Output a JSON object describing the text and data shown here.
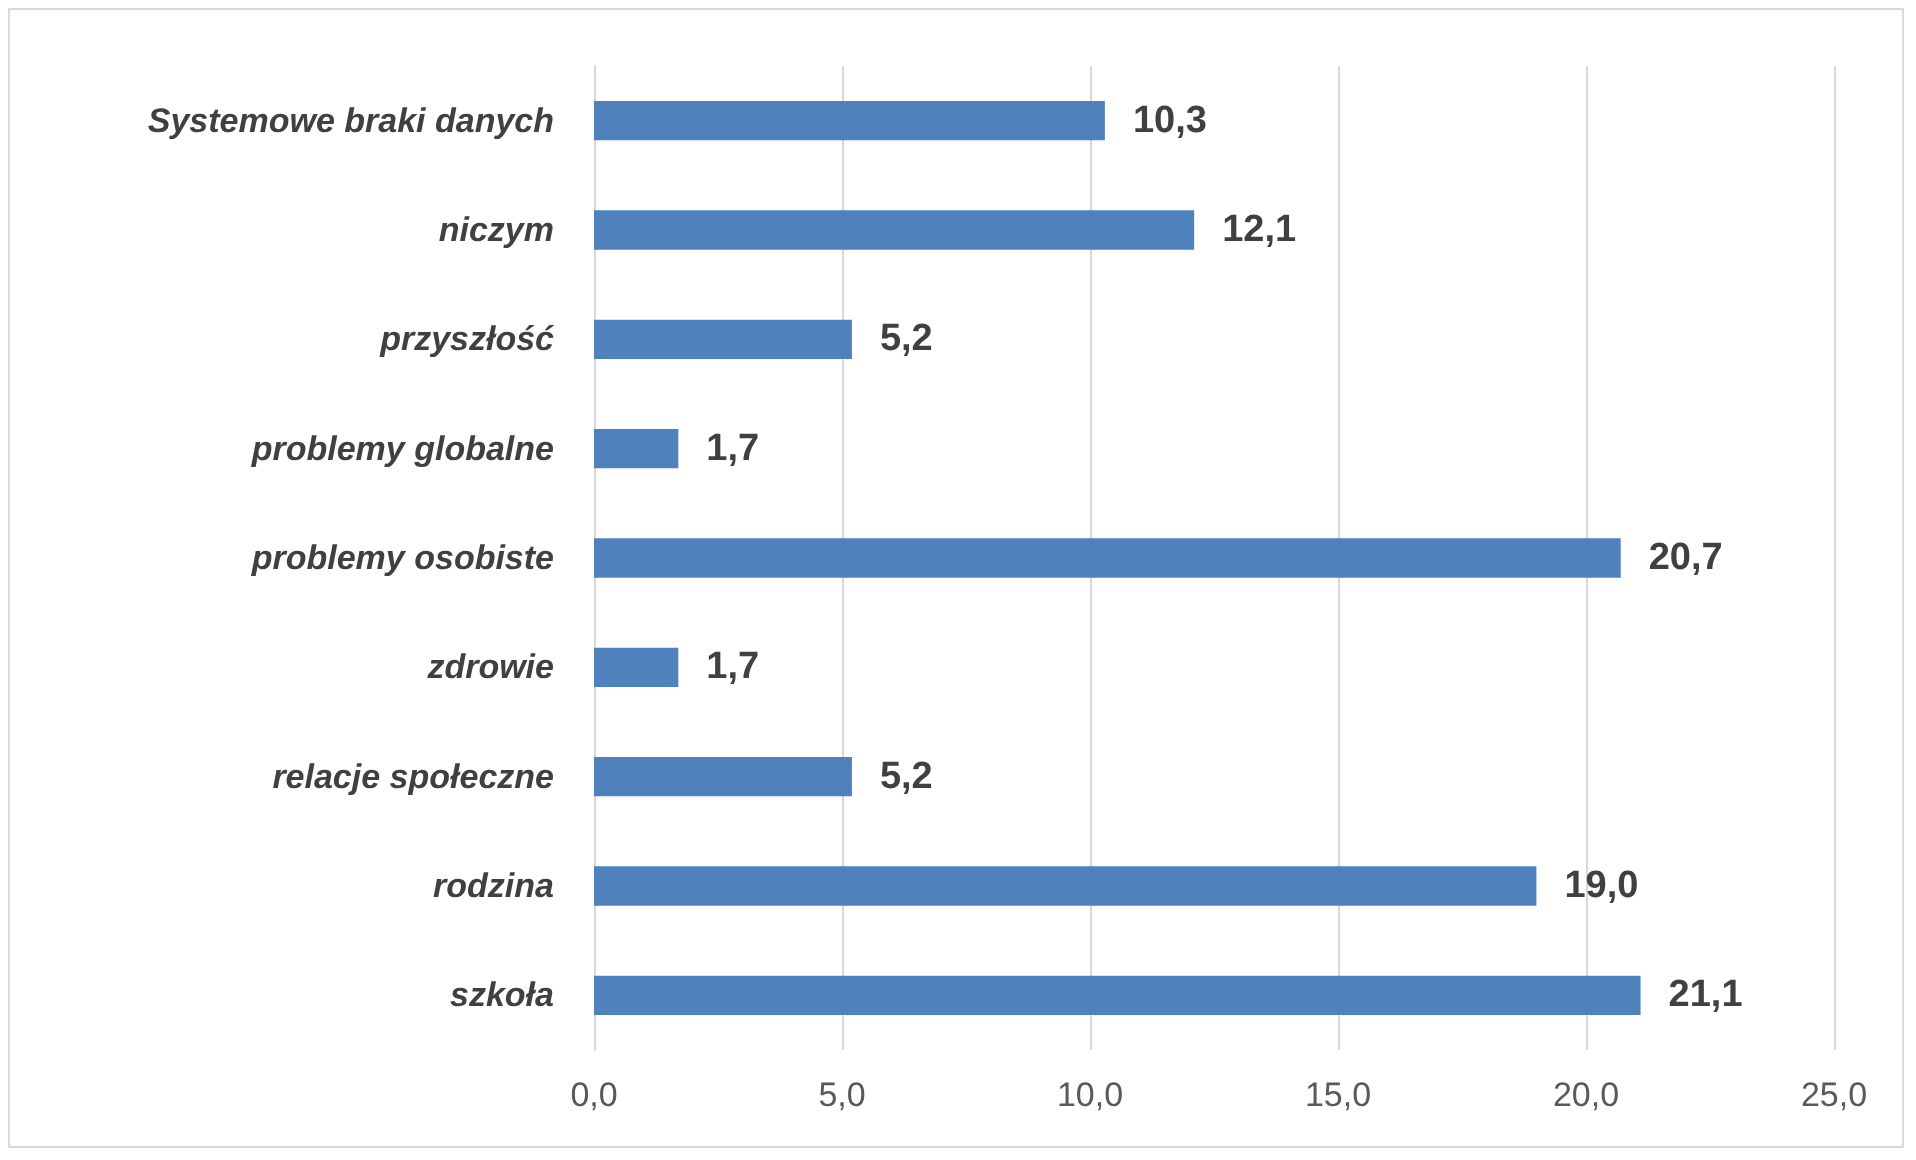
{
  "chart_data": {
    "type": "bar",
    "orientation": "horizontal",
    "categories": [
      "Systemowe braki danych",
      "niczym",
      "przyszłość",
      "problemy globalne",
      "problemy osobiste",
      "zdrowie",
      "relacje społeczne",
      "rodzina",
      "szkoła"
    ],
    "values": [
      10.3,
      12.1,
      5.2,
      1.7,
      20.7,
      1.7,
      5.2,
      19.0,
      21.1
    ],
    "value_labels": [
      "10,3",
      "12,1",
      "5,2",
      "1,7",
      "20,7",
      "1,7",
      "5,2",
      "19,0",
      "21,1"
    ],
    "color": "#4f81bd",
    "xlim": [
      0,
      25
    ],
    "xticks": [
      {
        "value": 0,
        "label": "0,0"
      },
      {
        "value": 5,
        "label": "5,0"
      },
      {
        "value": 10,
        "label": "10,0"
      },
      {
        "value": 15,
        "label": "15,0"
      },
      {
        "value": 20,
        "label": "20,0"
      },
      {
        "value": 25,
        "label": "25,0"
      }
    ],
    "grid": "x"
  }
}
